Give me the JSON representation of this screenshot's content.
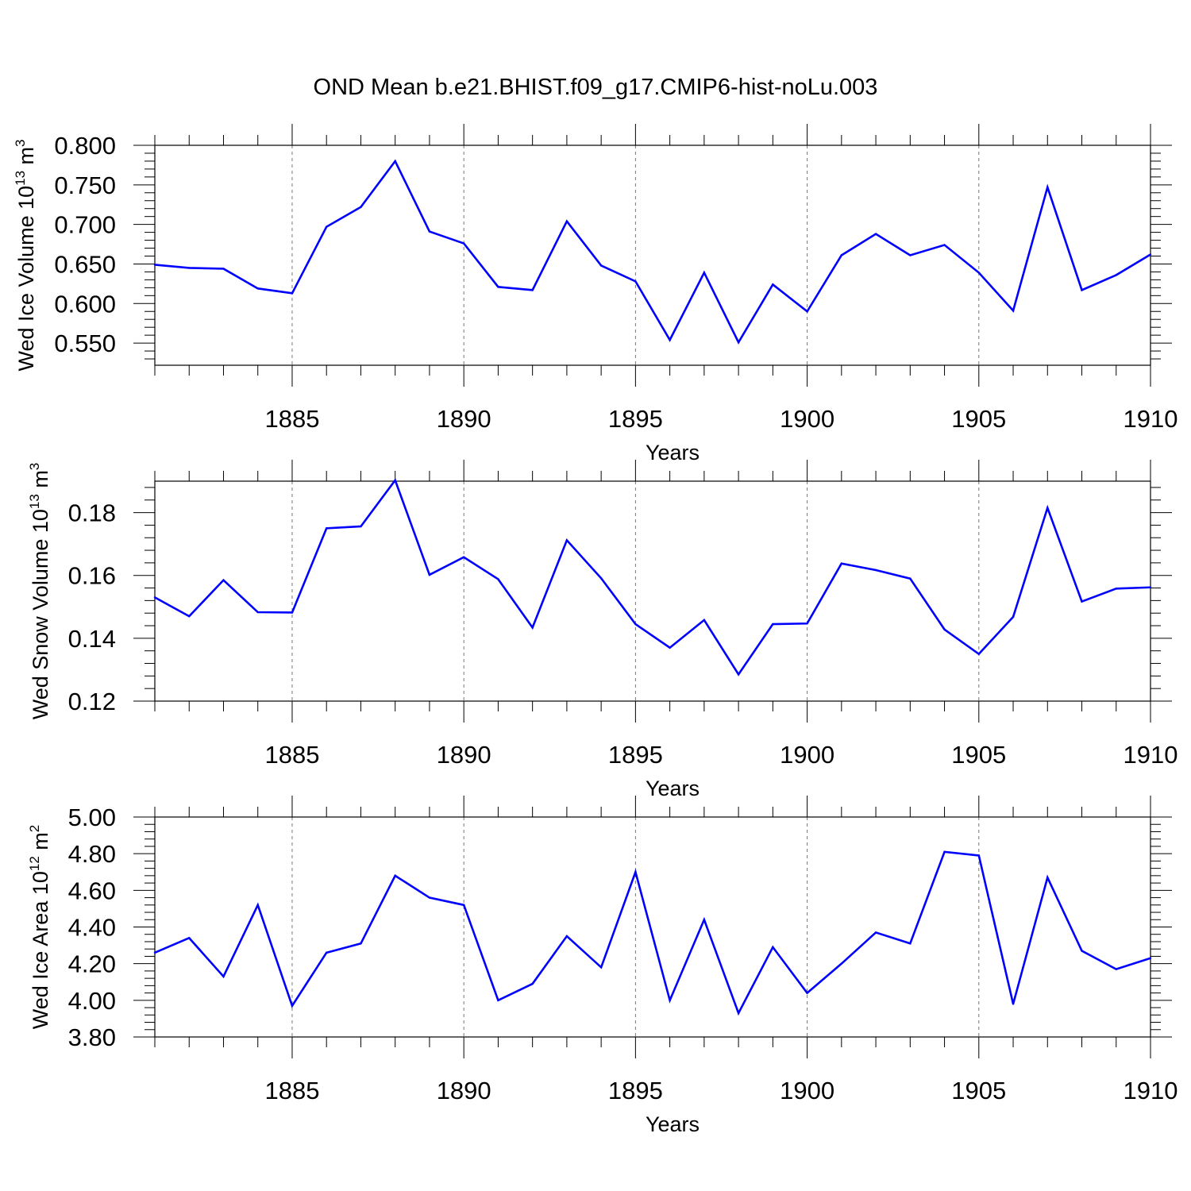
{
  "title": "OND Mean b.e21.BHIST.f09_g17.CMIP6-hist-noLu.003",
  "colors": {
    "line": "#0000ff",
    "axis": "#000000",
    "grid": "#777777"
  },
  "chart_data": [
    {
      "type": "line",
      "name": "panel-ice-volume",
      "ylabel": {
        "text": "Wed Ice Volume 10",
        "exp": "13",
        "unit": " m",
        "unit_exp": "3"
      },
      "xlabel": "Years",
      "xlim": [
        1881,
        1910
      ],
      "ylim": [
        0.522,
        0.8
      ],
      "yticks": [
        0.55,
        0.6,
        0.65,
        0.7,
        0.75,
        0.8
      ],
      "ytick_labels": [
        "0.550",
        "0.600",
        "0.650",
        "0.700",
        "0.750",
        "0.800"
      ],
      "yminor_step": 0.01,
      "xticks": [
        1885,
        1890,
        1895,
        1900,
        1905,
        1910
      ],
      "xtick_labels": [
        "1885",
        "1890",
        "1895",
        "1900",
        "1905",
        "1910"
      ],
      "x": [
        1881,
        1882,
        1883,
        1884,
        1885,
        1886,
        1887,
        1888,
        1889,
        1890,
        1891,
        1892,
        1893,
        1894,
        1895,
        1896,
        1897,
        1898,
        1899,
        1900,
        1901,
        1902,
        1903,
        1904,
        1905,
        1906,
        1907,
        1908,
        1909,
        1910
      ],
      "values": [
        0.649,
        0.645,
        0.644,
        0.619,
        0.613,
        0.697,
        0.722,
        0.78,
        0.691,
        0.676,
        0.621,
        0.617,
        0.704,
        0.648,
        0.628,
        0.554,
        0.639,
        0.551,
        0.624,
        0.59,
        0.661,
        0.688,
        0.661,
        0.674,
        0.639,
        0.591,
        0.747,
        0.617,
        0.636,
        0.662
      ]
    },
    {
      "type": "line",
      "name": "panel-snow-volume",
      "ylabel": {
        "text": "Wed Snow Volume 10",
        "exp": "13",
        "unit": " m",
        "unit_exp": "3"
      },
      "xlabel": "Years",
      "xlim": [
        1881,
        1910
      ],
      "ylim": [
        0.12,
        0.19
      ],
      "yticks": [
        0.12,
        0.14,
        0.16,
        0.18
      ],
      "ytick_labels": [
        "0.12",
        "0.14",
        "0.16",
        "0.18"
      ],
      "yminor_step": 0.004,
      "xticks": [
        1885,
        1890,
        1895,
        1900,
        1905,
        1910
      ],
      "xtick_labels": [
        "1885",
        "1890",
        "1895",
        "1900",
        "1905",
        "1910"
      ],
      "x": [
        1881,
        1882,
        1883,
        1884,
        1885,
        1886,
        1887,
        1888,
        1889,
        1890,
        1891,
        1892,
        1893,
        1894,
        1895,
        1896,
        1897,
        1898,
        1899,
        1900,
        1901,
        1902,
        1903,
        1904,
        1905,
        1906,
        1907,
        1908,
        1909,
        1910
      ],
      "values": [
        0.153,
        0.147,
        0.1585,
        0.1483,
        0.1482,
        0.175,
        0.1756,
        0.1903,
        0.1602,
        0.1658,
        0.1588,
        0.1434,
        0.1712,
        0.1591,
        0.1445,
        0.137,
        0.1458,
        0.1285,
        0.1445,
        0.1447,
        0.1638,
        0.1617,
        0.159,
        0.1428,
        0.135,
        0.1468,
        0.1815,
        0.1517,
        0.1558,
        0.1562
      ]
    },
    {
      "type": "line",
      "name": "panel-ice-area",
      "ylabel": {
        "text": "Wed Ice Area 10",
        "exp": "12",
        "unit": " m",
        "unit_exp": "2"
      },
      "xlabel": "Years",
      "xlim": [
        1881,
        1910
      ],
      "ylim": [
        3.8,
        5.0
      ],
      "yticks": [
        3.8,
        4.0,
        4.2,
        4.4,
        4.6,
        4.8,
        5.0
      ],
      "ytick_labels": [
        "3.80",
        "4.00",
        "4.20",
        "4.40",
        "4.60",
        "4.80",
        "5.00"
      ],
      "yminor_step": 0.04,
      "xticks": [
        1885,
        1890,
        1895,
        1900,
        1905,
        1910
      ],
      "xtick_labels": [
        "1885",
        "1890",
        "1895",
        "1900",
        "1905",
        "1910"
      ],
      "x": [
        1881,
        1882,
        1883,
        1884,
        1885,
        1886,
        1887,
        1888,
        1889,
        1890,
        1891,
        1892,
        1893,
        1894,
        1895,
        1896,
        1897,
        1898,
        1899,
        1900,
        1901,
        1902,
        1903,
        1904,
        1905,
        1906,
        1907,
        1908,
        1909,
        1910
      ],
      "values": [
        4.26,
        4.34,
        4.13,
        4.52,
        3.97,
        4.26,
        4.31,
        4.68,
        4.56,
        4.52,
        4.0,
        4.09,
        4.35,
        4.18,
        4.7,
        4.0,
        4.44,
        3.93,
        4.29,
        4.04,
        4.2,
        4.37,
        4.31,
        4.81,
        4.79,
        3.98,
        4.67,
        4.27,
        4.17,
        4.23
      ]
    }
  ]
}
